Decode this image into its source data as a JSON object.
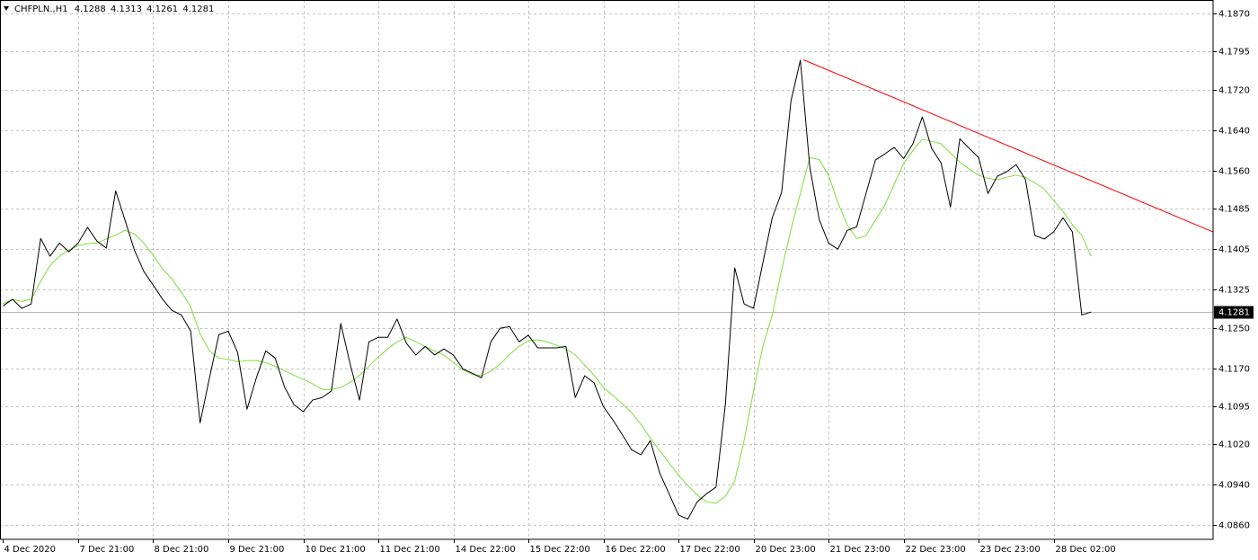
{
  "chart_data": {
    "type": "line",
    "title": "CHFPLN.,H1",
    "ohlc": [
      4.1288,
      4.1313,
      4.1261,
      4.1281
    ],
    "current_price": 4.1281,
    "grid": true,
    "xlim": [
      -1,
      387
    ],
    "ylim": [
      4.0832,
      4.1897
    ],
    "xticks": [
      {
        "value": 0,
        "label": "4 Dec 2020"
      },
      {
        "value": 24,
        "label": "7 Dec 21:00"
      },
      {
        "value": 48,
        "label": "8 Dec 21:00"
      },
      {
        "value": 72,
        "label": "9 Dec 21:00"
      },
      {
        "value": 96,
        "label": "10 Dec 21:00"
      },
      {
        "value": 120,
        "label": "11 Dec 21:00"
      },
      {
        "value": 144,
        "label": "14 Dec 22:00"
      },
      {
        "value": 168,
        "label": "15 Dec 22:00"
      },
      {
        "value": 192,
        "label": "16 Dec 22:00"
      },
      {
        "value": 216,
        "label": "17 Dec 22:00"
      },
      {
        "value": 240,
        "label": "20 Dec 23:00"
      },
      {
        "value": 264,
        "label": "21 Dec 23:00"
      },
      {
        "value": 288,
        "label": "22 Dec 23:00"
      },
      {
        "value": 312,
        "label": "23 Dec 23:00"
      },
      {
        "value": 336,
        "label": "28 Dec 02:00"
      }
    ],
    "yticks": [
      {
        "value": 4.187,
        "label": "4.1870"
      },
      4.1795,
      {
        "value": 4.172,
        "label": "4.1720"
      },
      {
        "value": 4.164,
        "label": "4.1640"
      },
      {
        "value": 4.156,
        "label": "4.1560"
      },
      4.1485,
      4.1405,
      4.1325,
      {
        "value": 4.125,
        "label": "4.1250"
      },
      {
        "value": 4.117,
        "label": "4.1170"
      },
      4.1095,
      {
        "value": 4.102,
        "label": "4.1020"
      },
      {
        "value": 4.094,
        "label": "4.0940"
      },
      {
        "value": 4.086,
        "label": "4.0860"
      }
    ],
    "x": [
      0,
      3,
      6,
      9,
      12,
      15,
      18,
      21,
      24,
      27,
      30,
      33,
      36,
      39,
      42,
      45,
      48,
      51,
      54,
      57,
      60,
      63,
      66,
      69,
      72,
      75,
      78,
      81,
      84,
      87,
      90,
      93,
      96,
      99,
      102,
      105,
      108,
      111,
      114,
      117,
      120,
      123,
      126,
      129,
      132,
      135,
      138,
      141,
      144,
      147,
      150,
      153,
      156,
      159,
      162,
      165,
      168,
      171,
      174,
      177,
      180,
      183,
      186,
      189,
      192,
      195,
      198,
      201,
      204,
      207,
      210,
      213,
      216,
      219,
      222,
      225,
      228,
      231,
      234,
      237,
      240,
      243,
      246,
      249,
      252,
      255,
      258,
      261,
      264,
      267,
      270,
      273,
      276,
      279,
      282,
      285,
      288,
      291,
      294,
      297,
      300,
      303,
      306,
      309,
      312,
      315,
      318,
      321,
      324,
      327,
      330,
      333,
      336,
      339,
      342,
      345,
      348
    ],
    "series": [
      {
        "color": "#000000",
        "values": [
          4.1293,
          4.1306,
          4.1288,
          4.1297,
          4.1426,
          4.1391,
          4.1417,
          4.14,
          4.1417,
          4.1448,
          4.1421,
          4.1407,
          4.152,
          4.1462,
          4.1403,
          4.1361,
          4.1334,
          4.1306,
          4.1284,
          4.1275,
          4.1243,
          4.1062,
          4.1151,
          4.1236,
          4.1243,
          4.1201,
          4.1089,
          4.1151,
          4.1204,
          4.119,
          4.1133,
          4.1098,
          4.1084,
          4.1107,
          4.1112,
          4.1125,
          4.1258,
          4.1178,
          4.1107,
          4.1222,
          4.1231,
          4.1231,
          4.1267,
          4.1219,
          4.1196,
          4.1213,
          4.1196,
          4.1208,
          4.1196,
          4.1169,
          4.116,
          4.1151,
          4.1222,
          4.1249,
          4.1252,
          4.1222,
          4.1235,
          4.121,
          4.121,
          4.121,
          4.1213,
          4.1112,
          4.1155,
          4.1141,
          4.1094,
          4.1068,
          4.1039,
          4.1009,
          4.0999,
          4.1027,
          4.0963,
          4.0922,
          4.088,
          4.0872,
          4.0906,
          4.0922,
          4.0935,
          4.1098,
          4.1368,
          4.1297,
          4.1288,
          4.1378,
          4.1467,
          4.1517,
          4.1698,
          4.1778,
          4.1568,
          4.1464,
          4.1417,
          4.1405,
          4.1442,
          4.1449,
          4.1515,
          4.1581,
          4.1593,
          4.1606,
          4.1584,
          4.1613,
          4.1666,
          4.1604,
          4.1575,
          4.1488,
          4.1623,
          4.1604,
          4.1586,
          4.1515,
          4.1549,
          4.1558,
          4.1572,
          4.1542,
          4.1432,
          4.1425,
          4.1439,
          4.1467,
          4.1439,
          4.1275,
          4.1281
        ]
      },
      {
        "color": "#7ddf3a",
        "values": [
          4.1297,
          4.1306,
          4.1302,
          4.1306,
          4.1341,
          4.1373,
          4.1391,
          4.1403,
          4.1412,
          4.1416,
          4.1417,
          4.1425,
          4.1433,
          4.1442,
          4.1435,
          4.1417,
          4.1393,
          4.1366,
          4.1346,
          4.132,
          4.1291,
          4.1238,
          4.1204,
          4.119,
          4.1187,
          4.1183,
          4.1185,
          4.1185,
          4.1181,
          4.1174,
          4.1165,
          4.1156,
          4.1148,
          4.1139,
          4.1128,
          4.1128,
          4.1132,
          4.1142,
          4.1156,
          4.1174,
          4.1192,
          4.1208,
          4.1222,
          4.1231,
          4.1222,
          4.1213,
          4.1204,
          4.1196,
          4.1181,
          4.1167,
          4.1158,
          4.1155,
          4.1164,
          4.1178,
          4.1197,
          4.1213,
          4.1224,
          4.1226,
          4.1222,
          4.1215,
          4.1208,
          4.1196,
          4.1176,
          4.1156,
          4.1132,
          4.1116,
          4.11,
          4.1082,
          4.1059,
          4.1032,
          4.1007,
          4.0983,
          4.0959,
          4.0938,
          4.092,
          4.0906,
          4.0903,
          4.0917,
          4.0947,
          4.1027,
          4.1125,
          4.1213,
          4.1275,
          4.1364,
          4.1444,
          4.1515,
          4.1586,
          4.1582,
          4.1551,
          4.1497,
          4.1453,
          4.1426,
          4.1432,
          4.1462,
          4.1492,
          4.1533,
          4.1574,
          4.16,
          4.1622,
          4.1618,
          4.1613,
          4.1595,
          4.1577,
          4.1563,
          4.1551,
          4.1545,
          4.1542,
          4.1547,
          4.1551,
          4.1547,
          4.1536,
          4.1524,
          4.1501,
          4.148,
          4.1453,
          4.1432,
          4.1391
        ]
      }
    ],
    "trendline": {
      "color": "#ff0000",
      "x": [
        256,
        387
      ],
      "values": [
        4.1779,
        4.1439
      ]
    }
  }
}
